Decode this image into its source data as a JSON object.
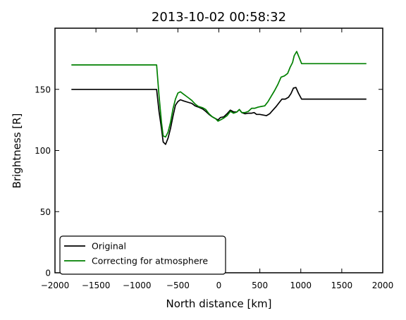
{
  "chart_data": {
    "type": "line",
    "title": "2013-10-02 00:58:32",
    "xlabel": "North distance [km]",
    "ylabel": "Brightness [R]",
    "xlim": [
      -2000,
      2000
    ],
    "ylim": [
      0,
      200
    ],
    "xticks": [
      -2000,
      -1500,
      -1000,
      -500,
      0,
      500,
      1000,
      1500,
      2000
    ],
    "yticks": [
      0,
      50,
      100,
      150
    ],
    "legend_position": "lower-left",
    "series": [
      {
        "name": "Original",
        "color": "#000000",
        "points": [
          [
            -1800,
            150
          ],
          [
            -760,
            150
          ],
          [
            -730,
            132
          ],
          [
            -700,
            118
          ],
          [
            -680,
            107
          ],
          [
            -650,
            105
          ],
          [
            -620,
            110
          ],
          [
            -590,
            118
          ],
          [
            -560,
            128
          ],
          [
            -530,
            137
          ],
          [
            -500,
            140
          ],
          [
            -470,
            141.5
          ],
          [
            -430,
            140.5
          ],
          [
            -380,
            139.5
          ],
          [
            -330,
            138.5
          ],
          [
            -290,
            136.5
          ],
          [
            -250,
            135.5
          ],
          [
            -200,
            134
          ],
          [
            -160,
            132
          ],
          [
            -120,
            129.5
          ],
          [
            -80,
            127.5
          ],
          [
            -40,
            126
          ],
          [
            -10,
            125
          ],
          [
            20,
            127
          ],
          [
            60,
            127.5
          ],
          [
            100,
            130
          ],
          [
            140,
            133
          ],
          [
            180,
            131.5
          ],
          [
            220,
            131.5
          ],
          [
            250,
            133.5
          ],
          [
            280,
            131
          ],
          [
            320,
            130
          ],
          [
            360,
            130.5
          ],
          [
            400,
            130.5
          ],
          [
            430,
            131
          ],
          [
            460,
            129.5
          ],
          [
            500,
            129.5
          ],
          [
            540,
            129
          ],
          [
            580,
            128.5
          ],
          [
            620,
            130
          ],
          [
            660,
            133
          ],
          [
            700,
            136
          ],
          [
            740,
            139.5
          ],
          [
            770,
            142
          ],
          [
            810,
            142
          ],
          [
            850,
            143.5
          ],
          [
            880,
            146.5
          ],
          [
            910,
            151
          ],
          [
            940,
            151.5
          ],
          [
            970,
            147
          ],
          [
            1010,
            142
          ],
          [
            1800,
            142
          ]
        ]
      },
      {
        "name": "Correcting for atmosphere",
        "color": "#008000",
        "points": [
          [
            -1800,
            170
          ],
          [
            -760,
            170
          ],
          [
            -730,
            145
          ],
          [
            -700,
            123
          ],
          [
            -680,
            112
          ],
          [
            -650,
            111
          ],
          [
            -620,
            115
          ],
          [
            -590,
            123
          ],
          [
            -560,
            134
          ],
          [
            -530,
            142
          ],
          [
            -500,
            147
          ],
          [
            -470,
            148
          ],
          [
            -430,
            146
          ],
          [
            -380,
            143.5
          ],
          [
            -330,
            141
          ],
          [
            -290,
            138
          ],
          [
            -250,
            136
          ],
          [
            -200,
            135
          ],
          [
            -160,
            133.5
          ],
          [
            -120,
            130
          ],
          [
            -80,
            127.5
          ],
          [
            -40,
            126
          ],
          [
            -10,
            124
          ],
          [
            20,
            125
          ],
          [
            60,
            126.5
          ],
          [
            100,
            128.5
          ],
          [
            140,
            132
          ],
          [
            180,
            130.5
          ],
          [
            220,
            131.5
          ],
          [
            250,
            133.5
          ],
          [
            280,
            131
          ],
          [
            320,
            131
          ],
          [
            360,
            132
          ],
          [
            400,
            134.5
          ],
          [
            440,
            134.5
          ],
          [
            480,
            135.5
          ],
          [
            520,
            136
          ],
          [
            560,
            136.5
          ],
          [
            600,
            140
          ],
          [
            640,
            144.5
          ],
          [
            680,
            149
          ],
          [
            720,
            154
          ],
          [
            760,
            160
          ],
          [
            800,
            161
          ],
          [
            840,
            163
          ],
          [
            870,
            168
          ],
          [
            900,
            172
          ],
          [
            920,
            177.5
          ],
          [
            950,
            181
          ],
          [
            980,
            176
          ],
          [
            1010,
            171
          ],
          [
            1800,
            171
          ]
        ]
      }
    ]
  }
}
